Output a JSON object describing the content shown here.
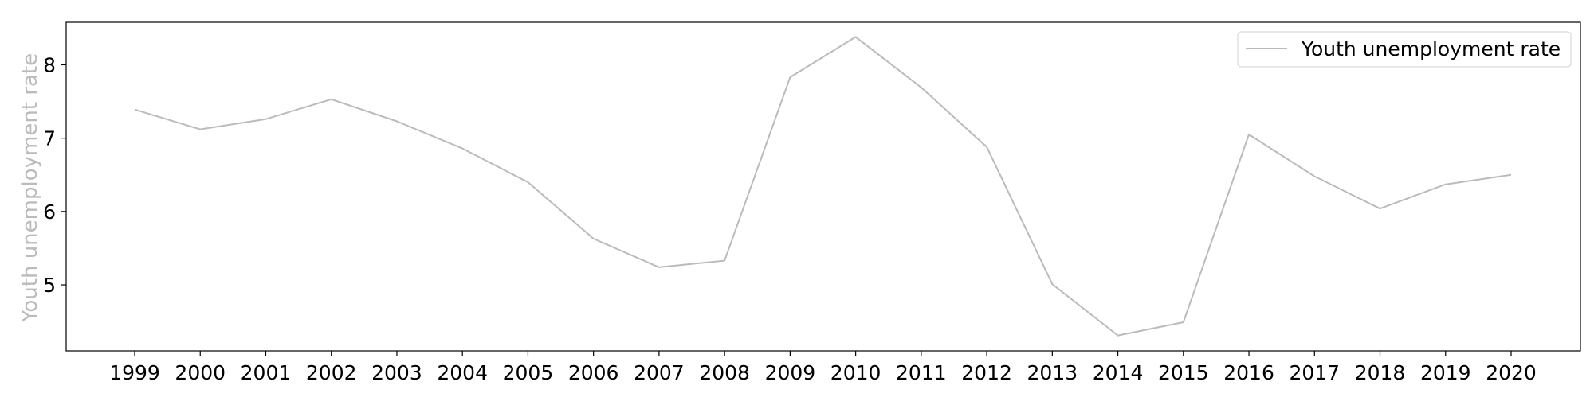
{
  "chart_data": {
    "type": "line",
    "title": "",
    "xlabel": "",
    "ylabel": "Youth unemployment rate",
    "x": [
      "1999",
      "2000",
      "2001",
      "2002",
      "2003",
      "2004",
      "2005",
      "2006",
      "2007",
      "2008",
      "2009",
      "2010",
      "2011",
      "2012",
      "2013",
      "2014",
      "2015",
      "2016",
      "2017",
      "2018",
      "2019",
      "2020"
    ],
    "series": [
      {
        "name": "Youth unemployment rate",
        "values": [
          7.39,
          7.12,
          7.26,
          7.53,
          7.23,
          6.86,
          6.4,
          5.63,
          5.24,
          5.33,
          7.83,
          8.38,
          7.69,
          6.88,
          5.01,
          4.31,
          4.49,
          7.05,
          6.48,
          6.04,
          6.37,
          6.5
        ],
        "color": "#bbbbbb"
      }
    ],
    "ylim": [
      4.1,
      8.58
    ],
    "yticks": [
      5,
      6,
      7,
      8
    ],
    "grid": false,
    "legend_position": "top-right"
  }
}
